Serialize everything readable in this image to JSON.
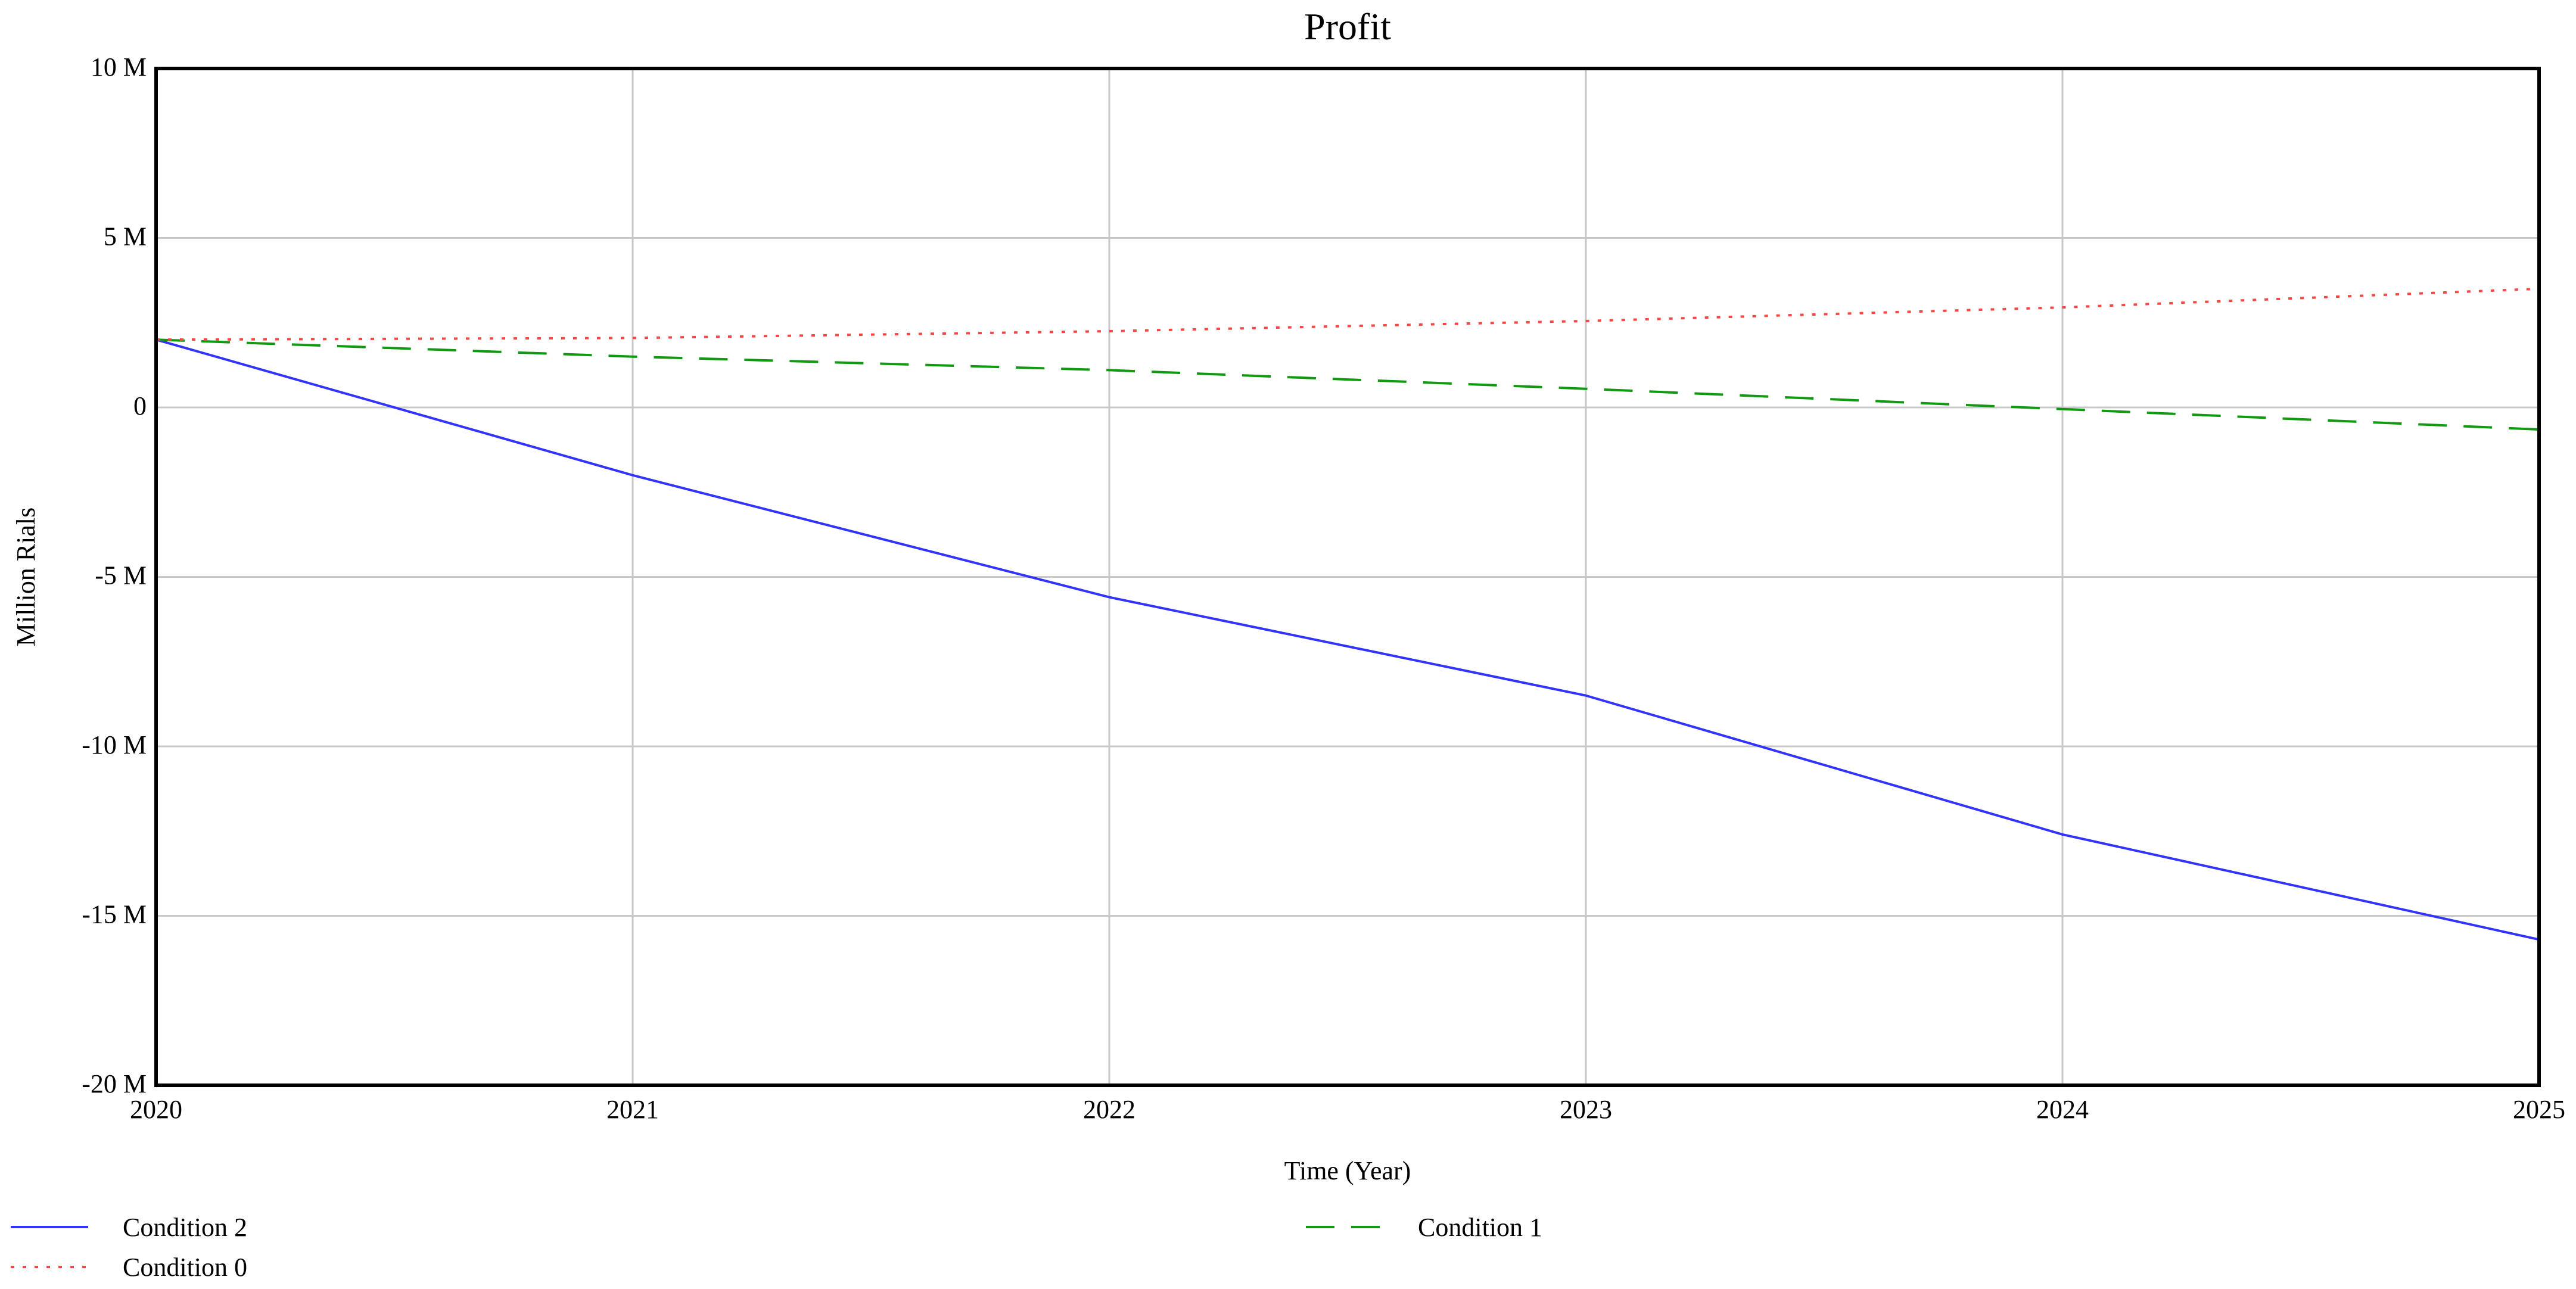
{
  "chart_data": {
    "type": "line",
    "title": "Profit",
    "xlabel": "Time (Year)",
    "ylabel": "Million Rials",
    "x": [
      2020,
      2021,
      2022,
      2023,
      2024,
      2025
    ],
    "xlim": [
      2020,
      2025
    ],
    "ylim": [
      -20000000,
      10000000
    ],
    "x_ticks": [
      2020,
      2021,
      2022,
      2023,
      2024,
      2025
    ],
    "x_tick_labels": [
      "2020",
      "2021",
      "2022",
      "2023",
      "2024",
      "2025"
    ],
    "y_ticks": [
      10000000,
      5000000,
      0,
      -5000000,
      -10000000,
      -15000000,
      -20000000
    ],
    "y_tick_labels": [
      "10 M",
      "5 M",
      "0",
      "-5 M",
      "-10 M",
      "-15 M",
      "-20 M"
    ],
    "grid": true,
    "legend_position": "bottom",
    "series": [
      {
        "name": "Condition 2",
        "color": "#3333ff",
        "style": "solid",
        "values": [
          2000000,
          -2000000,
          -5600000,
          -8500000,
          -12600000,
          -15700000
        ]
      },
      {
        "name": "Condition 1",
        "color": "#119911",
        "style": "dashed",
        "values": [
          2000000,
          1500000,
          1100000,
          550000,
          -50000,
          -650000
        ]
      },
      {
        "name": "Condition 0",
        "color": "#ff4444",
        "style": "dotted",
        "values": [
          2000000,
          2050000,
          2250000,
          2550000,
          2950000,
          3500000
        ]
      }
    ]
  }
}
